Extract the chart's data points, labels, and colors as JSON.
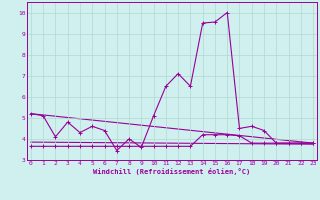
{
  "xlabel": "Windchill (Refroidissement éolien,°C)",
  "background_color": "#cff0ee",
  "grid_color": "#b0d8cc",
  "line_color": "#990099",
  "spine_color": "#990099",
  "x_values": [
    0,
    1,
    2,
    3,
    4,
    5,
    6,
    7,
    8,
    9,
    10,
    11,
    12,
    13,
    14,
    15,
    16,
    17,
    18,
    19,
    20,
    21,
    22,
    23
  ],
  "series1": [
    5.2,
    5.1,
    4.1,
    4.8,
    4.3,
    4.6,
    4.4,
    3.45,
    4.0,
    3.6,
    5.1,
    6.5,
    7.1,
    6.5,
    9.5,
    9.55,
    10.0,
    4.5,
    4.6,
    4.4,
    3.8,
    3.8,
    3.8,
    3.8
  ],
  "series2": [
    3.65,
    3.65,
    3.65,
    3.65,
    3.65,
    3.65,
    3.65,
    3.65,
    3.65,
    3.65,
    3.65,
    3.65,
    3.65,
    3.65,
    4.2,
    4.2,
    4.2,
    4.15,
    3.8,
    3.8,
    3.8,
    3.8,
    3.8,
    3.8
  ],
  "series3_x": [
    0,
    23
  ],
  "series3_y": [
    5.2,
    3.8
  ],
  "series4_x": [
    0,
    23
  ],
  "series4_y": [
    3.85,
    3.75
  ],
  "ylim": [
    3.0,
    10.5
  ],
  "xlim": [
    -0.3,
    23.3
  ],
  "yticks": [
    3,
    4,
    5,
    6,
    7,
    8,
    9,
    10
  ],
  "xticks": [
    0,
    1,
    2,
    3,
    4,
    5,
    6,
    7,
    8,
    9,
    10,
    11,
    12,
    13,
    14,
    15,
    16,
    17,
    18,
    19,
    20,
    21,
    22,
    23
  ]
}
